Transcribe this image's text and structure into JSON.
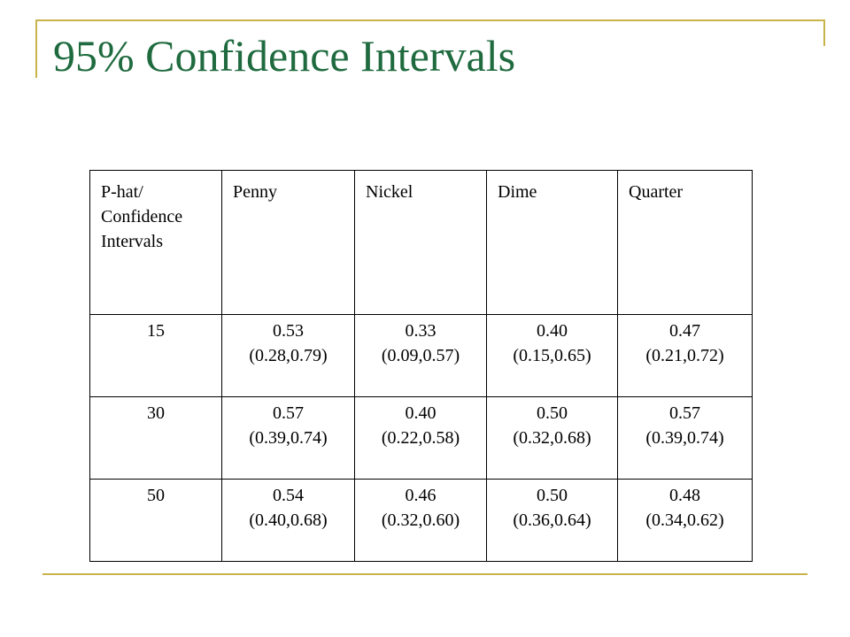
{
  "slide": {
    "title": "95% Confidence Intervals"
  },
  "table": {
    "header": {
      "first_col_lines": [
        "P-hat/",
        "Confidence",
        "Intervals"
      ],
      "columns": [
        "Penny",
        "Nickel",
        "Dime",
        "Quarter"
      ]
    },
    "rows": [
      {
        "label": "15",
        "cells": [
          {
            "phat": "0.53",
            "interval": "(0.28,0.79)"
          },
          {
            "phat": "0.33",
            "interval": "(0.09,0.57)"
          },
          {
            "phat": "0.40",
            "interval": "(0.15,0.65)"
          },
          {
            "phat": "0.47",
            "interval": "(0.21,0.72)"
          }
        ]
      },
      {
        "label": "30",
        "cells": [
          {
            "phat": "0.57",
            "interval": "(0.39,0.74)"
          },
          {
            "phat": "0.40",
            "interval": "(0.22,0.58)"
          },
          {
            "phat": "0.50",
            "interval": "(0.32,0.68)"
          },
          {
            "phat": "0.57",
            "interval": "(0.39,0.74)"
          }
        ]
      },
      {
        "label": "50",
        "cells": [
          {
            "phat": "0.54",
            "interval": "(0.40,0.68)"
          },
          {
            "phat": "0.46",
            "interval": "(0.32,0.60)"
          },
          {
            "phat": "0.50",
            "interval": "(0.36,0.64)"
          },
          {
            "phat": "0.48",
            "interval": "(0.34,0.62)"
          }
        ]
      }
    ]
  },
  "colors": {
    "title": "#1f6b3f",
    "frame": "#c8b44a",
    "text": "#000000",
    "background": "#ffffff"
  }
}
